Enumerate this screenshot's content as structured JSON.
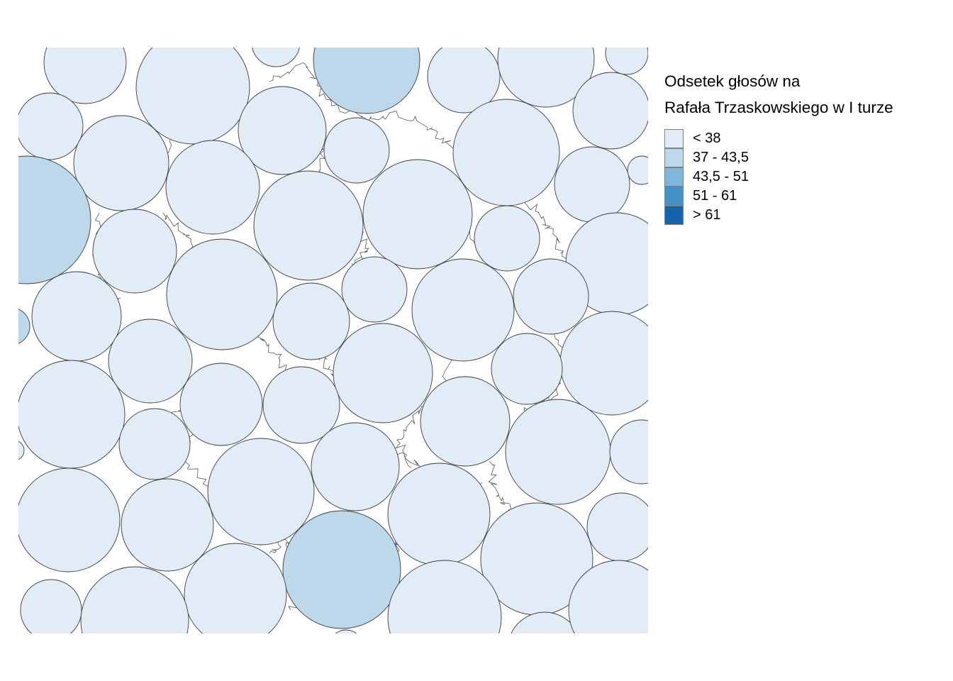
{
  "legend": {
    "title_line1": "Odsetek głosów na",
    "title_line2": "Rafała Trzaskowskiego w I turze",
    "items": [
      {
        "label": "< 38",
        "color": "#E1ECF7"
      },
      {
        "label": "37 - 43,5",
        "color": "#BDD7EB"
      },
      {
        "label": "43,5 - 51",
        "color": "#80B6D9"
      },
      {
        "label": "51 - 61",
        "color": "#4391C6"
      },
      {
        "label": "> 61",
        "color": "#1563AA"
      }
    ]
  },
  "map": {
    "circle_stroke": "#3c3c3c",
    "classes_shown": [
      "< 38",
      "37 - 43,5"
    ]
  }
}
